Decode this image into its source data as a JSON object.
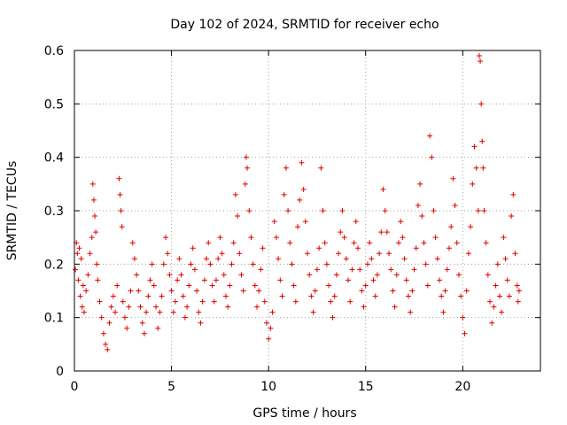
{
  "chart_data": {
    "type": "scatter",
    "title": "Day 102 of 2024, SRMTID for receiver echo",
    "xlabel": "GPS time / hours",
    "ylabel": "SRMTID / TECUs",
    "xlim": [
      0,
      24
    ],
    "ylim": [
      0,
      0.6
    ],
    "x_ticks": [
      0,
      5,
      10,
      15,
      20
    ],
    "y_ticks": [
      0,
      0.1,
      0.2,
      0.3,
      0.4,
      0.5,
      0.6
    ],
    "x_tick_labels": [
      "0",
      "5",
      "10",
      "15",
      "20"
    ],
    "y_tick_labels": [
      "0",
      "0.1",
      "0.2",
      "0.3",
      "0.4",
      "0.5",
      "0.6"
    ],
    "grid": true,
    "marker": "+",
    "color": "#e00000",
    "series": [
      {
        "name": "SRMTID",
        "points": [
          [
            0.05,
            0.19
          ],
          [
            0.1,
            0.24
          ],
          [
            0.15,
            0.22
          ],
          [
            0.2,
            0.17
          ],
          [
            0.25,
            0.23
          ],
          [
            0.3,
            0.14
          ],
          [
            0.35,
            0.21
          ],
          [
            0.4,
            0.12
          ],
          [
            0.45,
            0.16
          ],
          [
            0.5,
            0.11
          ],
          [
            0.6,
            0.15
          ],
          [
            0.7,
            0.18
          ],
          [
            0.8,
            0.22
          ],
          [
            0.9,
            0.25
          ],
          [
            0.95,
            0.35
          ],
          [
            1.0,
            0.32
          ],
          [
            1.05,
            0.29
          ],
          [
            1.1,
            0.26
          ],
          [
            1.15,
            0.2
          ],
          [
            1.2,
            0.17
          ],
          [
            1.3,
            0.13
          ],
          [
            1.4,
            0.1
          ],
          [
            1.5,
            0.07
          ],
          [
            1.6,
            0.05
          ],
          [
            1.7,
            0.04
          ],
          [
            1.8,
            0.09
          ],
          [
            1.9,
            0.12
          ],
          [
            2.0,
            0.14
          ],
          [
            2.1,
            0.11
          ],
          [
            2.2,
            0.16
          ],
          [
            2.3,
            0.36
          ],
          [
            2.35,
            0.33
          ],
          [
            2.4,
            0.3
          ],
          [
            2.45,
            0.27
          ],
          [
            2.5,
            0.13
          ],
          [
            2.6,
            0.1
          ],
          [
            2.7,
            0.08
          ],
          [
            2.8,
            0.12
          ],
          [
            2.9,
            0.15
          ],
          [
            3.0,
            0.24
          ],
          [
            3.1,
            0.21
          ],
          [
            3.2,
            0.18
          ],
          [
            3.3,
            0.15
          ],
          [
            3.4,
            0.12
          ],
          [
            3.5,
            0.09
          ],
          [
            3.6,
            0.07
          ],
          [
            3.7,
            0.11
          ],
          [
            3.8,
            0.14
          ],
          [
            3.9,
            0.17
          ],
          [
            4.0,
            0.2
          ],
          [
            4.1,
            0.16
          ],
          [
            4.2,
            0.12
          ],
          [
            4.3,
            0.08
          ],
          [
            4.4,
            0.11
          ],
          [
            4.5,
            0.14
          ],
          [
            4.6,
            0.2
          ],
          [
            4.7,
            0.25
          ],
          [
            4.8,
            0.22
          ],
          [
            4.9,
            0.18
          ],
          [
            5.0,
            0.15
          ],
          [
            5.1,
            0.11
          ],
          [
            5.2,
            0.13
          ],
          [
            5.3,
            0.17
          ],
          [
            5.4,
            0.21
          ],
          [
            5.5,
            0.18
          ],
          [
            5.6,
            0.14
          ],
          [
            5.7,
            0.1
          ],
          [
            5.8,
            0.12
          ],
          [
            5.9,
            0.16
          ],
          [
            6.0,
            0.2
          ],
          [
            6.1,
            0.23
          ],
          [
            6.2,
            0.19
          ],
          [
            6.3,
            0.15
          ],
          [
            6.4,
            0.11
          ],
          [
            6.5,
            0.09
          ],
          [
            6.6,
            0.13
          ],
          [
            6.7,
            0.17
          ],
          [
            6.8,
            0.21
          ],
          [
            6.9,
            0.24
          ],
          [
            7.0,
            0.2
          ],
          [
            7.1,
            0.16
          ],
          [
            7.2,
            0.13
          ],
          [
            7.3,
            0.17
          ],
          [
            7.4,
            0.21
          ],
          [
            7.5,
            0.25
          ],
          [
            7.6,
            0.22
          ],
          [
            7.7,
            0.18
          ],
          [
            7.8,
            0.14
          ],
          [
            7.9,
            0.12
          ],
          [
            8.0,
            0.16
          ],
          [
            8.1,
            0.2
          ],
          [
            8.2,
            0.24
          ],
          [
            8.3,
            0.33
          ],
          [
            8.4,
            0.29
          ],
          [
            8.5,
            0.22
          ],
          [
            8.6,
            0.18
          ],
          [
            8.7,
            0.15
          ],
          [
            8.8,
            0.35
          ],
          [
            8.85,
            0.4
          ],
          [
            8.9,
            0.38
          ],
          [
            9.0,
            0.3
          ],
          [
            9.1,
            0.25
          ],
          [
            9.2,
            0.2
          ],
          [
            9.3,
            0.16
          ],
          [
            9.4,
            0.12
          ],
          [
            9.5,
            0.15
          ],
          [
            9.6,
            0.19
          ],
          [
            9.7,
            0.23
          ],
          [
            9.8,
            0.13
          ],
          [
            9.9,
            0.09
          ],
          [
            10.0,
            0.06
          ],
          [
            10.1,
            0.08
          ],
          [
            10.2,
            0.11
          ],
          [
            10.3,
            0.28
          ],
          [
            10.4,
            0.25
          ],
          [
            10.5,
            0.21
          ],
          [
            10.6,
            0.17
          ],
          [
            10.7,
            0.14
          ],
          [
            10.8,
            0.33
          ],
          [
            10.9,
            0.38
          ],
          [
            11.0,
            0.3
          ],
          [
            11.1,
            0.24
          ],
          [
            11.2,
            0.2
          ],
          [
            11.3,
            0.16
          ],
          [
            11.4,
            0.13
          ],
          [
            11.5,
            0.27
          ],
          [
            11.6,
            0.32
          ],
          [
            11.7,
            0.39
          ],
          [
            11.8,
            0.34
          ],
          [
            11.9,
            0.28
          ],
          [
            12.0,
            0.22
          ],
          [
            12.1,
            0.18
          ],
          [
            12.2,
            0.14
          ],
          [
            12.3,
            0.11
          ],
          [
            12.4,
            0.15
          ],
          [
            12.5,
            0.19
          ],
          [
            12.6,
            0.23
          ],
          [
            12.7,
            0.38
          ],
          [
            12.8,
            0.3
          ],
          [
            12.9,
            0.24
          ],
          [
            13.0,
            0.2
          ],
          [
            13.1,
            0.16
          ],
          [
            13.2,
            0.13
          ],
          [
            13.3,
            0.1
          ],
          [
            13.4,
            0.14
          ],
          [
            13.5,
            0.18
          ],
          [
            13.6,
            0.22
          ],
          [
            13.7,
            0.26
          ],
          [
            13.8,
            0.3
          ],
          [
            13.9,
            0.25
          ],
          [
            14.0,
            0.21
          ],
          [
            14.1,
            0.17
          ],
          [
            14.2,
            0.13
          ],
          [
            14.3,
            0.19
          ],
          [
            14.4,
            0.24
          ],
          [
            14.5,
            0.28
          ],
          [
            14.6,
            0.23
          ],
          [
            14.7,
            0.19
          ],
          [
            14.8,
            0.15
          ],
          [
            14.9,
            0.12
          ],
          [
            15.0,
            0.16
          ],
          [
            15.1,
            0.2
          ],
          [
            15.2,
            0.24
          ],
          [
            15.3,
            0.21
          ],
          [
            15.4,
            0.17
          ],
          [
            15.5,
            0.14
          ],
          [
            15.6,
            0.18
          ],
          [
            15.7,
            0.22
          ],
          [
            15.8,
            0.26
          ],
          [
            15.9,
            0.34
          ],
          [
            16.0,
            0.3
          ],
          [
            16.1,
            0.26
          ],
          [
            16.2,
            0.22
          ],
          [
            16.3,
            0.19
          ],
          [
            16.4,
            0.15
          ],
          [
            16.5,
            0.12
          ],
          [
            16.6,
            0.18
          ],
          [
            16.7,
            0.24
          ],
          [
            16.8,
            0.28
          ],
          [
            16.9,
            0.25
          ],
          [
            17.0,
            0.21
          ],
          [
            17.1,
            0.17
          ],
          [
            17.2,
            0.14
          ],
          [
            17.3,
            0.11
          ],
          [
            17.4,
            0.15
          ],
          [
            17.5,
            0.19
          ],
          [
            17.6,
            0.23
          ],
          [
            17.7,
            0.31
          ],
          [
            17.8,
            0.35
          ],
          [
            17.9,
            0.29
          ],
          [
            18.0,
            0.24
          ],
          [
            18.1,
            0.2
          ],
          [
            18.2,
            0.16
          ],
          [
            18.3,
            0.44
          ],
          [
            18.4,
            0.4
          ],
          [
            18.5,
            0.3
          ],
          [
            18.6,
            0.25
          ],
          [
            18.7,
            0.21
          ],
          [
            18.8,
            0.17
          ],
          [
            18.9,
            0.14
          ],
          [
            19.0,
            0.11
          ],
          [
            19.1,
            0.15
          ],
          [
            19.2,
            0.19
          ],
          [
            19.3,
            0.23
          ],
          [
            19.4,
            0.27
          ],
          [
            19.5,
            0.36
          ],
          [
            19.6,
            0.31
          ],
          [
            19.7,
            0.24
          ],
          [
            19.8,
            0.18
          ],
          [
            19.9,
            0.14
          ],
          [
            20.0,
            0.1
          ],
          [
            20.1,
            0.07
          ],
          [
            20.2,
            0.15
          ],
          [
            20.3,
            0.22
          ],
          [
            20.4,
            0.27
          ],
          [
            20.5,
            0.35
          ],
          [
            20.6,
            0.42
          ],
          [
            20.7,
            0.38
          ],
          [
            20.8,
            0.3
          ],
          [
            20.85,
            0.59
          ],
          [
            20.9,
            0.58
          ],
          [
            20.95,
            0.5
          ],
          [
            21.0,
            0.43
          ],
          [
            21.05,
            0.38
          ],
          [
            21.1,
            0.3
          ],
          [
            21.2,
            0.24
          ],
          [
            21.3,
            0.18
          ],
          [
            21.4,
            0.13
          ],
          [
            21.5,
            0.09
          ],
          [
            21.6,
            0.12
          ],
          [
            21.7,
            0.16
          ],
          [
            21.8,
            0.2
          ],
          [
            21.9,
            0.14
          ],
          [
            22.0,
            0.11
          ],
          [
            22.1,
            0.25
          ],
          [
            22.2,
            0.21
          ],
          [
            22.3,
            0.17
          ],
          [
            22.4,
            0.14
          ],
          [
            22.5,
            0.29
          ],
          [
            22.6,
            0.33
          ],
          [
            22.7,
            0.22
          ],
          [
            22.8,
            0.16
          ],
          [
            22.85,
            0.13
          ],
          [
            22.9,
            0.15
          ]
        ]
      }
    ]
  }
}
